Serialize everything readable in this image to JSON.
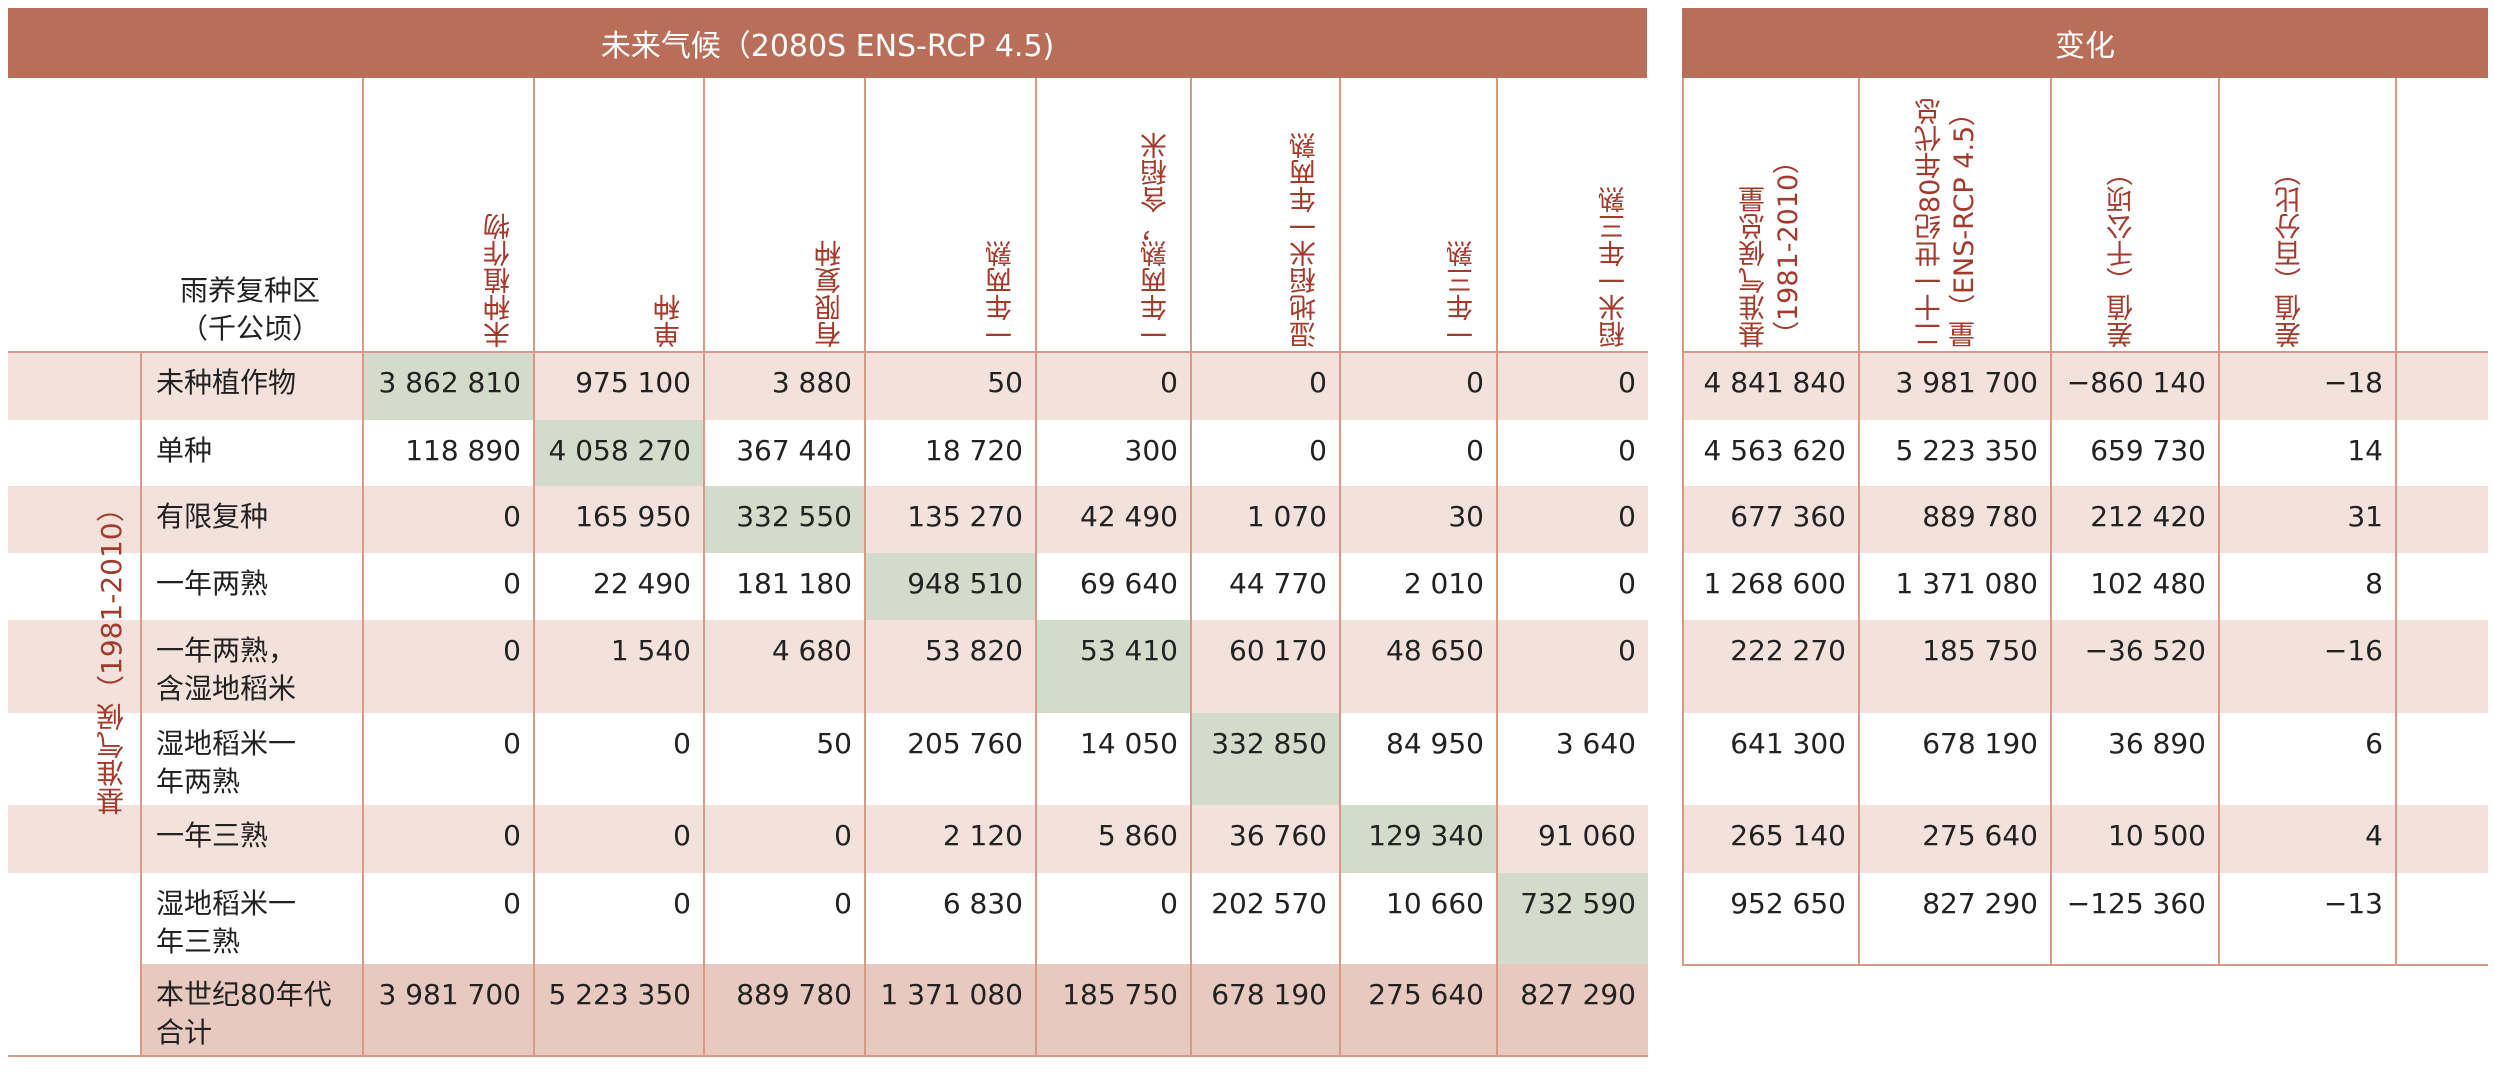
{
  "left_header": "未来气候（2080S ENS-RCP 4.5)",
  "right_header": "变化",
  "corner_label": "雨养复种区\n（千公顷）",
  "side_label": "基准气候（1981-2010）",
  "future_columns": [
    "未种植作物",
    "单种",
    "有限复种",
    "一年两熟",
    "一年两熟，含稻米",
    "湿地稻米一年两熟",
    "一年三熟",
    "稻米一年三熟"
  ],
  "change_columns": [
    "基准气候总量（1981-2010）",
    "二十一世纪80年代总量（ENS-RCP 4.5）",
    "差值（千公顷）",
    "差值（百分比）"
  ],
  "rows": [
    {
      "label": "未种植作物",
      "values": [
        "3 862 810",
        "975 100",
        "3 880",
        "50",
        "0",
        "0",
        "0",
        "0"
      ],
      "change": [
        "4 841 840",
        "3 981 700",
        "−860 140",
        "−18"
      ]
    },
    {
      "label": "单种",
      "values": [
        "118 890",
        "4 058 270",
        "367 440",
        "18 720",
        "300",
        "0",
        "0",
        "0"
      ],
      "change": [
        "4 563 620",
        "5 223 350",
        "659 730",
        "14"
      ]
    },
    {
      "label": "有限复种",
      "values": [
        "0",
        "165 950",
        "332 550",
        "135 270",
        "42 490",
        "1 070",
        "30",
        "0"
      ],
      "change": [
        "677 360",
        "889 780",
        "212 420",
        "31"
      ]
    },
    {
      "label": "一年两熟",
      "values": [
        "0",
        "22 490",
        "181 180",
        "948 510",
        "69 640",
        "44 770",
        "2 010",
        "0"
      ],
      "change": [
        "1 268 600",
        "1 371 080",
        "102 480",
        "8"
      ]
    },
    {
      "label": "一年两熟，\n含湿地稻米",
      "values": [
        "0",
        "1 540",
        "4 680",
        "53 820",
        "53 410",
        "60 170",
        "48 650",
        "0"
      ],
      "change": [
        "222 270",
        "185 750",
        "−36 520",
        "−16"
      ]
    },
    {
      "label": "湿地稻米一\n年两熟",
      "values": [
        "0",
        "0",
        "50",
        "205 760",
        "14 050",
        "332 850",
        "84 950",
        "3 640"
      ],
      "change": [
        "641 300",
        "678 190",
        "36 890",
        "6"
      ]
    },
    {
      "label": "一年三熟",
      "values": [
        "0",
        "0",
        "0",
        "2 120",
        "5 860",
        "36 760",
        "129 340",
        "91 060"
      ],
      "change": [
        "265 140",
        "275 640",
        "10 500",
        "4"
      ]
    },
    {
      "label": "湿地稻米一\n年三熟",
      "values": [
        "0",
        "0",
        "0",
        "6 830",
        "0",
        "202 570",
        "10 660",
        "732 590"
      ],
      "change": [
        "952 650",
        "827 290",
        "−125 360",
        "−13"
      ]
    }
  ],
  "total_row": {
    "label": "本世纪80年代\n合计",
    "values": [
      "3 981 700",
      "5 223 350",
      "889 780",
      "1 371 080",
      "185 750",
      "678 190",
      "275 640",
      "827 290"
    ]
  },
  "colors": {
    "banner": "#b86e58",
    "header_text": "#a33a2c",
    "band_pink": "#f3e1dc",
    "band_total": "#e8c9bf",
    "diagonal": "#d3dccb",
    "rule": "#d99a85"
  }
}
